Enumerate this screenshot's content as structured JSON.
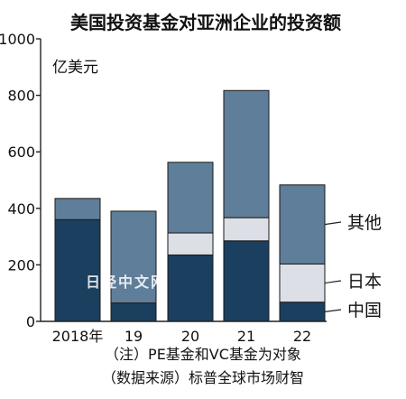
{
  "chart_data": {
    "type": "bar",
    "stacked": true,
    "title": "美国投资基金对亚洲企业的投资额",
    "unit_label": "亿美元",
    "categories": [
      "2018年",
      "19",
      "20",
      "21",
      "22"
    ],
    "series": [
      {
        "name": "中国",
        "values": [
          360,
          65,
          235,
          285,
          68
        ],
        "color": "#1b3f5e"
      },
      {
        "name": "日本",
        "values": [
          0,
          0,
          78,
          82,
          135
        ],
        "color": "#dcdfe6"
      },
      {
        "name": "其他",
        "values": [
          75,
          325,
          250,
          450,
          280
        ],
        "color": "#5f7e99"
      }
    ],
    "ylim": [
      0,
      1000
    ],
    "yticks": [
      0,
      200,
      400,
      600,
      800,
      1000
    ],
    "grid": false,
    "legend": "right, labels attached to bars",
    "notes": [
      "（注）PE基金和VC基金为对象",
      "（数据来源）标普全球市场财智"
    ],
    "watermark": "日经中文网"
  }
}
